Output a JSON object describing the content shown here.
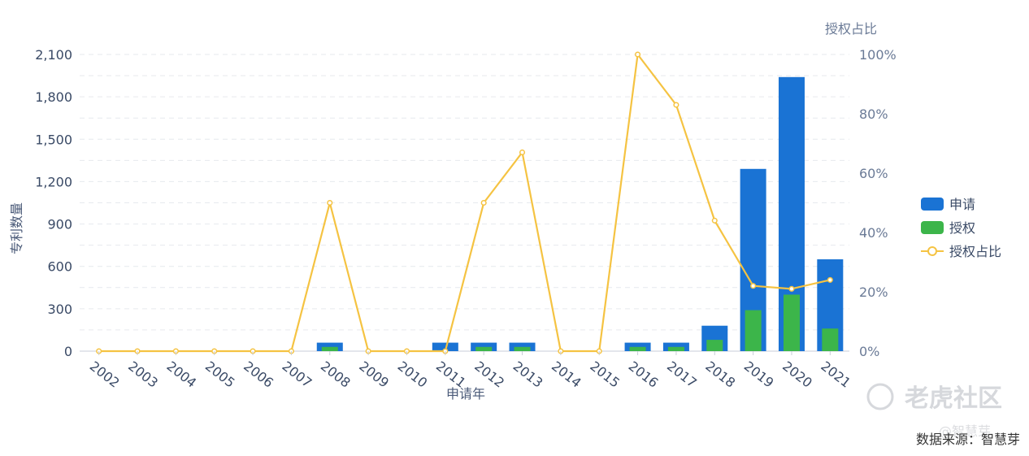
{
  "chart_data": {
    "type": "bar",
    "categories": [
      "2002",
      "2003",
      "2004",
      "2005",
      "2006",
      "2007",
      "2008",
      "2009",
      "2010",
      "2011",
      "2012",
      "2013",
      "2014",
      "2015",
      "2016",
      "2017",
      "2018",
      "2019",
      "2020",
      "2021"
    ],
    "series": [
      {
        "name": "申请",
        "type": "bar",
        "color": "#1a73d4",
        "values": [
          0,
          0,
          0,
          0,
          0,
          0,
          60,
          0,
          0,
          60,
          60,
          60,
          0,
          0,
          60,
          60,
          180,
          1290,
          1940,
          650
        ]
      },
      {
        "name": "授权",
        "type": "bar",
        "color": "#3cb54a",
        "values": [
          0,
          0,
          0,
          0,
          0,
          0,
          30,
          0,
          0,
          0,
          30,
          30,
          0,
          0,
          30,
          30,
          80,
          290,
          400,
          160
        ]
      },
      {
        "name": "授权占比",
        "type": "line",
        "color": "#f5c342",
        "axis": "right",
        "values": [
          0,
          0,
          0,
          0,
          0,
          0,
          50,
          0,
          0,
          0,
          50,
          67,
          0,
          0,
          100,
          83,
          44,
          22,
          21,
          24
        ]
      }
    ],
    "xlabel": "申请年",
    "ylabel": "专利数量",
    "y2label": "授权占比",
    "ylim": [
      0,
      2100
    ],
    "y2lim": [
      0,
      100
    ],
    "yticks": [
      "0",
      "300",
      "600",
      "900",
      "1,200",
      "1,500",
      "1,800",
      "2,100"
    ],
    "y2ticks": [
      "0%",
      "20%",
      "40%",
      "60%",
      "80%",
      "100%"
    ],
    "grid": true,
    "legend_position": "right"
  },
  "watermark": {
    "brand": "老虎社区",
    "handle": "@智慧芽"
  },
  "source": "数据来源：智慧芽"
}
